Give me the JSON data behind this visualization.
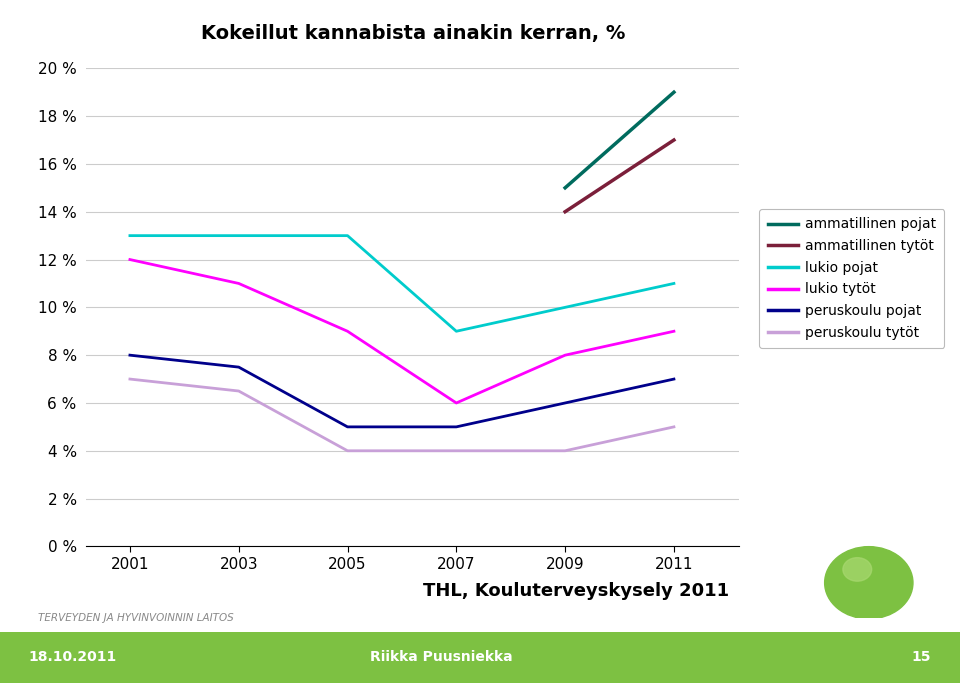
{
  "title": "Kokeillut kannabista ainakin kerran, %",
  "years_all": [
    2001,
    2003,
    2005,
    2007,
    2009,
    2011
  ],
  "years_amm": [
    2009,
    2011
  ],
  "ammatillinen_pojat": [
    15.0,
    19.0
  ],
  "ammatillinen_tytot": [
    14.0,
    17.0
  ],
  "lukio_pojat": [
    13.0,
    13.0,
    13.0,
    9.0,
    10.0,
    11.0
  ],
  "lukio_tytot": [
    12.0,
    11.0,
    9.0,
    6.0,
    8.0,
    9.0
  ],
  "peruskoulu_pojat": [
    8.0,
    7.5,
    5.0,
    5.0,
    6.0,
    7.0
  ],
  "peruskoulu_tytot": [
    7.0,
    6.5,
    4.0,
    4.0,
    4.0,
    5.0
  ],
  "color_amm_pojat": "#006B5E",
  "color_amm_tytot": "#7B1F3A",
  "color_lukio_pojat": "#00CCCC",
  "color_lukio_tytot": "#FF00FF",
  "color_peruskoulu_pojat": "#00008B",
  "color_peruskoulu_tytot": "#C8A0D8",
  "ylim": [
    0,
    20
  ],
  "yticks": [
    0,
    2,
    4,
    6,
    8,
    10,
    12,
    14,
    16,
    18,
    20
  ],
  "ytick_labels": [
    "0 %",
    "2 %",
    "4 %",
    "6 %",
    "8 %",
    "10 %",
    "12 %",
    "14 %",
    "16 %",
    "18 %",
    "20 %"
  ],
  "xticks": [
    2001,
    2003,
    2005,
    2007,
    2009,
    2011
  ],
  "footer_left": "TERVEYDEN JA HYVINVOINNIN LAITOS",
  "footer_center": "THL, Kouluterveyskysely 2011",
  "footer_date": "18.10.2011",
  "footer_name": "Riikka Puusniekka",
  "footer_page": "15",
  "legend_labels": [
    "ammatillinen pojat",
    "ammatillinen tytöt",
    "lukio pojat",
    "lukio tytöt",
    "peruskoulu pojat",
    "peruskoulu tytöt"
  ],
  "background_color": "#FFFFFF",
  "footer_bar_color": "#7DC142",
  "linewidth": 2.0
}
